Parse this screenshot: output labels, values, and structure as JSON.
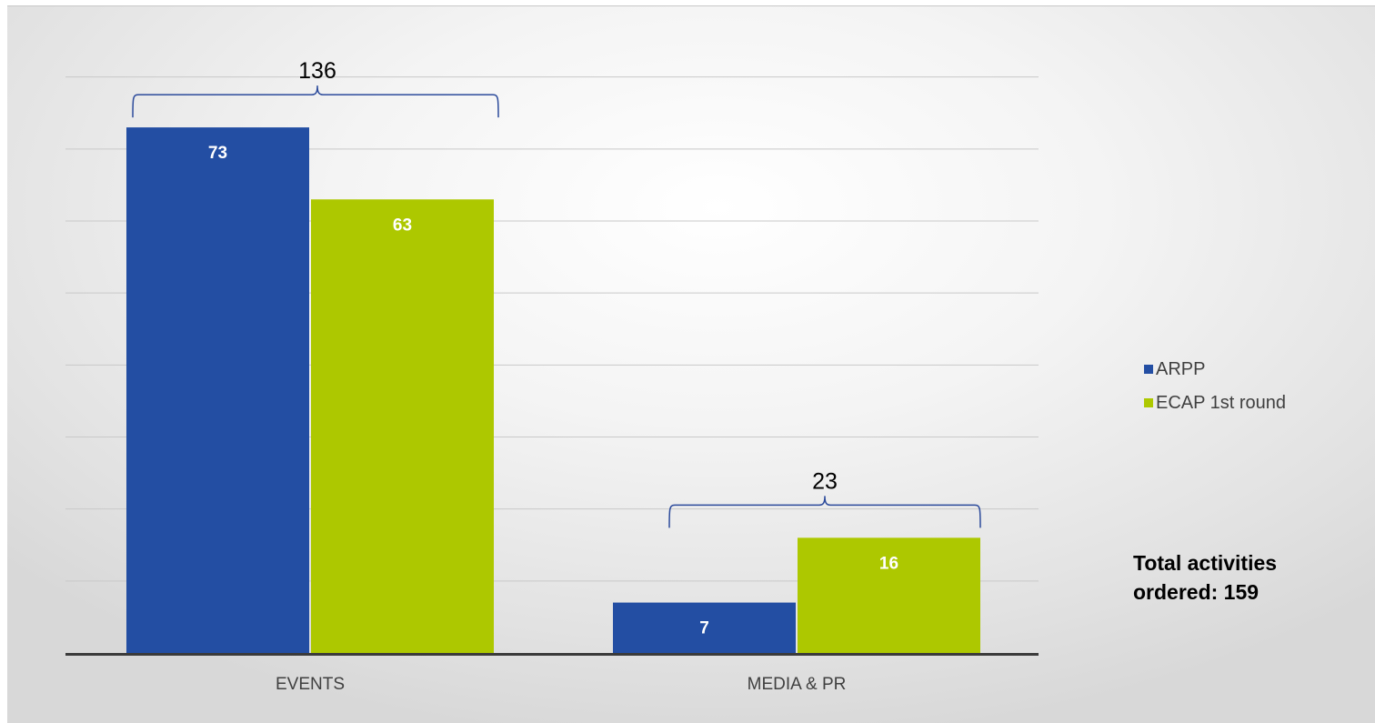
{
  "chart_data": {
    "type": "bar",
    "categories": [
      "EVENTS",
      "MEDIA & PR"
    ],
    "series": [
      {
        "name": "ARPP",
        "values": [
          73,
          7
        ],
        "color": "#234ea3"
      },
      {
        "name": "ECAP 1st round",
        "values": [
          63,
          16
        ],
        "color": "#adc800"
      }
    ],
    "group_totals": [
      "136",
      "23"
    ],
    "ylim": [
      0,
      84
    ],
    "gridline_step": 10,
    "grid": true,
    "legend_position": "right",
    "title": "",
    "xlabel": "",
    "ylabel": ""
  },
  "legend": {
    "items": [
      {
        "label": "ARPP",
        "color": "#234ea3"
      },
      {
        "label": "ECAP 1st round",
        "color": "#adc800"
      }
    ]
  },
  "note": {
    "line1": "Total activities",
    "line2": "ordered: 159"
  }
}
